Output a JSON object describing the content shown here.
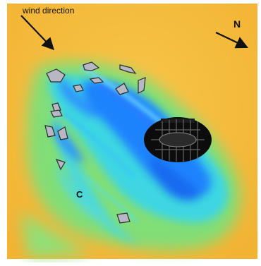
{
  "labels": {
    "wind_direction": "wind direction",
    "north": "N",
    "region": "C"
  },
  "colors": {
    "background_field": "#f4b93a",
    "wake_green": "#6fdc6a",
    "wake_cyan": "#35d7e6",
    "wake_blue": "#1976ff",
    "dense_core": "#0b0b0b",
    "obstacle_fill": "#b9b9c4"
  },
  "icons": {
    "wind_arrow": "arrow-southeast-icon",
    "north_arrow": "arrow-southeast-icon"
  }
}
